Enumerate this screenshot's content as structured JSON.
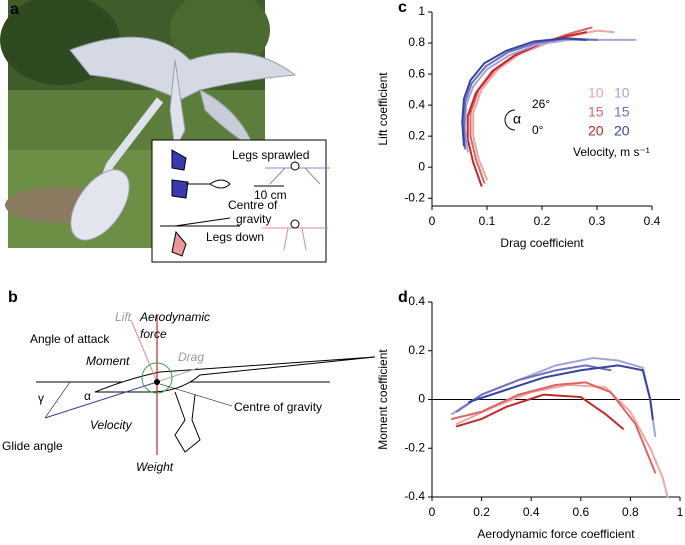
{
  "panel_labels": [
    "a",
    "b",
    "c",
    "d"
  ],
  "panel_a": {
    "legs_sprawled": "Legs sprawled",
    "scale": "10 cm",
    "centre": [
      "Centre of",
      "gravity"
    ],
    "legs_down": "Legs down"
  },
  "panel_b": {
    "lift": "Lift",
    "force": [
      "Aerodynamic",
      "force"
    ],
    "angle_of_attack": "Angle of attack",
    "moment": "Moment",
    "drag": "Drag",
    "alpha": "α",
    "gamma": "γ",
    "velocity": "Velocity",
    "centre": "Centre of gravity",
    "glide_angle": "Glide angle",
    "weight": "Weight"
  },
  "chart_data": [
    {
      "type": "line",
      "xlabel": "Drag coefficient",
      "ylabel": "Lift coefficient",
      "xlim": [
        0,
        0.4
      ],
      "xticks": [
        0,
        0.1,
        0.2,
        0.3,
        0.4
      ],
      "ylim": [
        -0.25,
        1
      ],
      "yticks": [
        -0.2,
        0,
        0.2,
        0.4,
        0.6,
        0.8,
        1
      ],
      "annotations": {
        "alpha": "α",
        "max_angle": "26°",
        "min_angle": "0°",
        "legend_title": "Velocity,  m s⁻¹"
      },
      "series": [
        {
          "name": "10",
          "color": "#f0a5a5",
          "x": [
            0.1,
            0.085,
            0.075,
            0.075,
            0.09,
            0.12,
            0.16,
            0.21,
            0.26,
            0.3,
            0.33
          ],
          "values": [
            -0.08,
            0.05,
            0.2,
            0.35,
            0.5,
            0.63,
            0.73,
            0.8,
            0.85,
            0.88,
            0.87
          ]
        },
        {
          "name": "15",
          "color": "#e06464",
          "x": [
            0.095,
            0.08,
            0.07,
            0.07,
            0.085,
            0.115,
            0.155,
            0.2,
            0.25,
            0.29
          ],
          "values": [
            -0.1,
            0.05,
            0.2,
            0.35,
            0.5,
            0.63,
            0.73,
            0.8,
            0.86,
            0.9
          ]
        },
        {
          "name": "20",
          "color": "#c42828",
          "x": [
            0.09,
            0.075,
            0.065,
            0.065,
            0.08,
            0.11,
            0.15,
            0.2,
            0.24,
            0.28
          ],
          "values": [
            -0.12,
            0.03,
            0.18,
            0.33,
            0.48,
            0.62,
            0.72,
            0.8,
            0.84,
            0.87
          ]
        },
        {
          "name": "10",
          "color": "#a4a4dc",
          "x": [
            0.065,
            0.06,
            0.062,
            0.075,
            0.1,
            0.14,
            0.19,
            0.25,
            0.31,
            0.37
          ],
          "values": [
            0.1,
            0.25,
            0.4,
            0.52,
            0.63,
            0.72,
            0.79,
            0.82,
            0.82,
            0.82
          ]
        },
        {
          "name": "15",
          "color": "#7070c0",
          "x": [
            0.06,
            0.058,
            0.06,
            0.072,
            0.098,
            0.138,
            0.188,
            0.245,
            0.3
          ],
          "values": [
            0.12,
            0.27,
            0.42,
            0.54,
            0.65,
            0.74,
            0.8,
            0.83,
            0.82
          ]
        },
        {
          "name": "20",
          "color": "#3444a0",
          "x": [
            0.058,
            0.055,
            0.058,
            0.07,
            0.095,
            0.135,
            0.185,
            0.24,
            0.28
          ],
          "values": [
            0.14,
            0.29,
            0.44,
            0.56,
            0.67,
            0.75,
            0.81,
            0.83,
            0.82
          ]
        }
      ]
    },
    {
      "type": "line",
      "xlabel": "Aerodynamic force coefficient",
      "ylabel": "Moment coefficient",
      "zero_line": true,
      "xlim": [
        0,
        1
      ],
      "xticks": [
        0,
        0.2,
        0.4,
        0.6,
        0.8,
        1
      ],
      "ylim": [
        -0.4,
        0.4
      ],
      "yticks": [
        -0.4,
        -0.2,
        0,
        0.2,
        0.4
      ],
      "series": [
        {
          "name": "10",
          "color": "#f0a5a5",
          "x": [
            0.1,
            0.25,
            0.4,
            0.55,
            0.7,
            0.8,
            0.88,
            0.93,
            0.95
          ],
          "values": [
            -0.1,
            -0.03,
            0.03,
            0.06,
            0.05,
            -0.05,
            -0.2,
            -0.32,
            -0.4
          ]
        },
        {
          "name": "15",
          "color": "#e06464",
          "x": [
            0.08,
            0.2,
            0.35,
            0.5,
            0.62,
            0.72,
            0.82,
            0.9
          ],
          "values": [
            -0.08,
            -0.05,
            0.02,
            0.06,
            0.07,
            0.03,
            -0.1,
            -0.3
          ]
        },
        {
          "name": "20",
          "color": "#c42828",
          "x": [
            0.1,
            0.2,
            0.3,
            0.45,
            0.6,
            0.7,
            0.77
          ],
          "values": [
            -0.11,
            -0.08,
            -0.03,
            0.02,
            0.01,
            -0.06,
            -0.12
          ]
        },
        {
          "name": "10",
          "color": "#a4a4dc",
          "x": [
            0.08,
            0.2,
            0.35,
            0.5,
            0.65,
            0.75,
            0.85,
            0.88,
            0.9
          ],
          "values": [
            -0.06,
            0.02,
            0.08,
            0.14,
            0.17,
            0.16,
            0.13,
            0,
            -0.15
          ]
        },
        {
          "name": "15",
          "color": "#7070c0",
          "x": [
            0.1,
            0.2,
            0.35,
            0.5,
            0.62,
            0.72
          ],
          "values": [
            -0.05,
            0.02,
            0.08,
            0.12,
            0.14,
            0.12
          ]
        },
        {
          "name": "20",
          "color": "#3444a0",
          "x": [
            0.15,
            0.3,
            0.45,
            0.6,
            0.75,
            0.85,
            0.88,
            0.89
          ],
          "values": [
            -0.01,
            0.04,
            0.09,
            0.12,
            0.14,
            0.12,
            0,
            -0.08
          ]
        }
      ]
    }
  ]
}
